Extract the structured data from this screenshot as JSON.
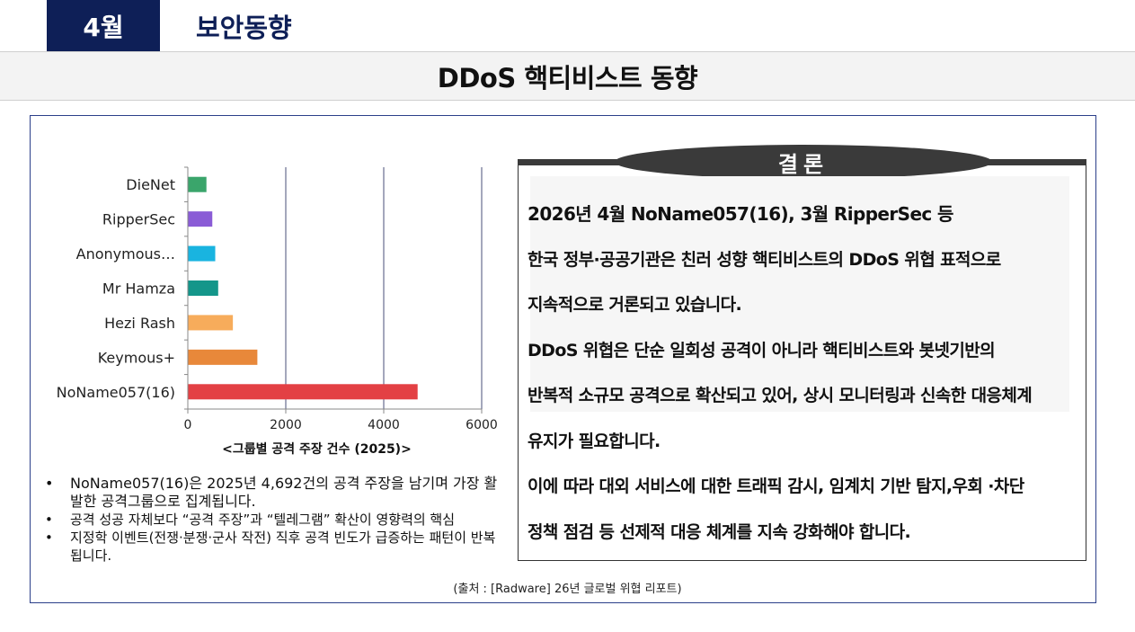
{
  "header": {
    "month": "4월",
    "section": "보안동향"
  },
  "page_title": "DDoS 핵티비스트 동향",
  "chart_data": {
    "type": "bar",
    "orientation": "horizontal",
    "categories": [
      "DieNet",
      "RipperSec",
      "Anonymous…",
      "Mr Hamza",
      "Hezi Rash",
      "Keymous+",
      "NoName057(16)"
    ],
    "values": [
      380,
      500,
      560,
      620,
      920,
      1420,
      4692
    ],
    "colors": [
      "#3aa56b",
      "#8a5cd6",
      "#19b4e0",
      "#14968a",
      "#f7ac5b",
      "#e8883a",
      "#e34044"
    ],
    "xlim": [
      0,
      6000
    ],
    "xticks": [
      0,
      2000,
      4000,
      6000
    ],
    "xlabel": "<그룹별 공격 주장 건수 (2025)>",
    "grid": true
  },
  "bullets": [
    "NoName057(16)은 2025년 4,692건의 공격 주장을 남기며 가장 활발한 공격그룹으로 집계됩니다.",
    "공격 성공 자체보다 “공격 주장”과 “텔레그램” 확산이 영향력의 핵심",
    "지정학 이벤트(전쟁·분쟁·군사 작전) 직후 공격 빈도가 급증하는 패턴이 반복됩니다."
  ],
  "source": "(출처 : [Radware] 26년 글로벌 위협 리포트)",
  "conclusion": {
    "title": "결론",
    "lines": [
      "2026년 4월 NoName057(16), 3월 RipperSec 등",
      "한국 정부·공공기관은 친러 성향 핵티비스트의 DDoS 위협 표적으로",
      "지속적으로 거론되고 있습니다.",
      "DDoS 위협은 단순 일회성 공격이 아니라 핵티비스트와 봇넷기반의",
      "반복적 소규모 공격으로 확산되고 있어, 상시 모니터링과 신속한 대응체계",
      "유지가 필요합니다.",
      "이에 따라 대외 서비스에 대한 트래픽 감시, 임계치 기반 탐지,우회 ·차단",
      "정책 점검 등 선제적 대응 체계를 지속 강화해야 합니다."
    ]
  }
}
